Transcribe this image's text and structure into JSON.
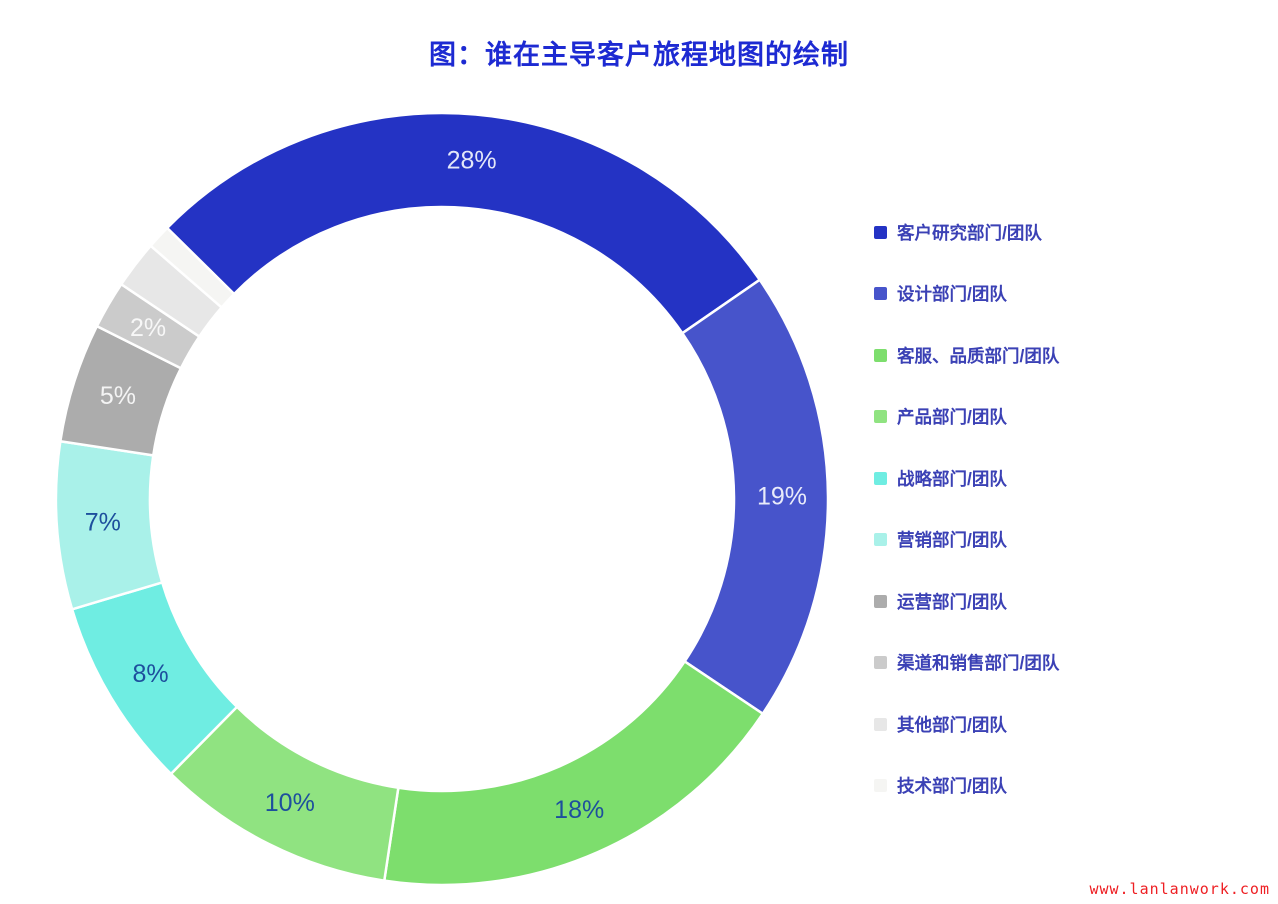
{
  "page": {
    "title": "图：谁在主导客户旅程地图的绘制",
    "watermark": "www.lanlanwork.com",
    "background": "#ffffff",
    "title_color": "#1d2ad2",
    "watermark_color": "#ee1f23"
  },
  "chart_data": {
    "type": "pie",
    "variant": "donut",
    "title": "图：谁在主导客户旅程地图的绘制",
    "legend_position": "right",
    "start_angle_deg": -45.4,
    "separator_color": "#ffffff",
    "series": [
      {
        "label": "客户研究部门/团队",
        "value": 28,
        "data_label": "28%",
        "color": "#2433c4",
        "label_color": "#e3e7f8"
      },
      {
        "label": "设计部门/团队",
        "value": 19,
        "data_label": "19%",
        "color": "#4754cb",
        "label_color": "#e9ebfa"
      },
      {
        "label": "客服、品质部门/团队",
        "value": 18,
        "data_label": "18%",
        "color": "#7dde6d",
        "label_color": "#1d4f9d"
      },
      {
        "label": "产品部门/团队",
        "value": 10,
        "data_label": "10%",
        "color": "#90e381",
        "label_color": "#1d4f9d"
      },
      {
        "label": "战略部门/团队",
        "value": 8,
        "data_label": "8%",
        "color": "#6fede2",
        "label_color": "#1d4f9d"
      },
      {
        "label": "营销部门/团队",
        "value": 7,
        "data_label": "7%",
        "color": "#a9f1e9",
        "label_color": "#1d4f9d"
      },
      {
        "label": "运营部门/团队",
        "value": 5,
        "data_label": "5%",
        "color": "#acacac",
        "label_color": "#f4f4f4"
      },
      {
        "label": "渠道和销售部门/团队",
        "value": 2,
        "data_label": "2%",
        "color": "#cbcbcb",
        "label_color": "#f7f7f7"
      },
      {
        "label": "其他部门/团队",
        "value": 2,
        "data_label": "",
        "color": "#e7e7e7",
        "label_color": ""
      },
      {
        "label": "技术部门/团队",
        "value": 1,
        "data_label": "",
        "color": "#f5f5f3",
        "label_color": ""
      }
    ]
  }
}
